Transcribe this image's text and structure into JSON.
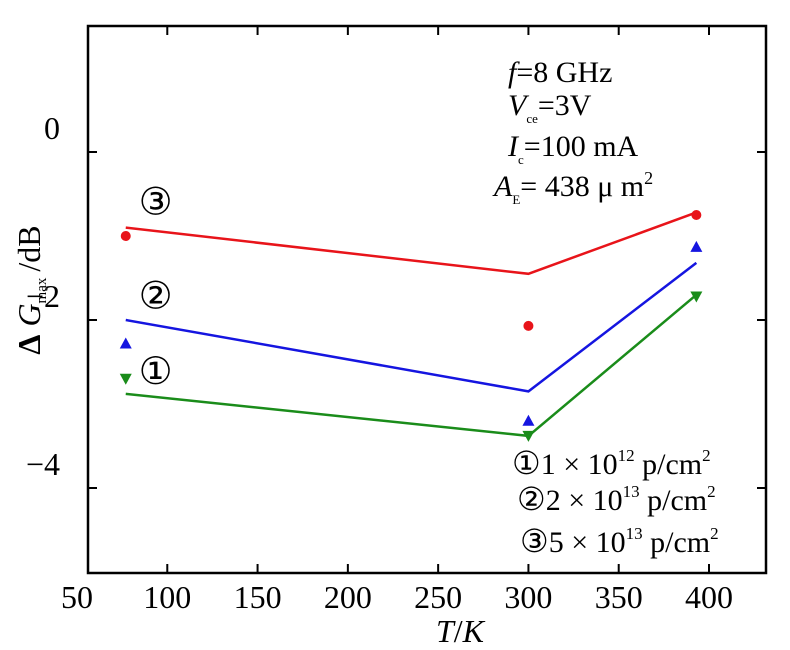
{
  "chart_data": {
    "type": "line",
    "xlabel": {
      "var": "T",
      "unit": "K"
    },
    "ylabel": {
      "delta": "Δ",
      "var": "G",
      "sub": "max",
      "unit": "/dB"
    },
    "xlim": [
      50,
      425
    ],
    "ylim": [
      -5,
      1.5
    ],
    "xticks": [
      50,
      100,
      150,
      200,
      250,
      300,
      350,
      400
    ],
    "yticks": [
      0,
      -2,
      -4
    ],
    "ytick_labels": [
      "0",
      "−2",
      "−4"
    ],
    "grid": false,
    "series": [
      {
        "id": "3",
        "marker_label": "③",
        "color": "#e8141a",
        "marker": "circle",
        "line_x": [
          77,
          300,
          393
        ],
        "line_y": [
          -0.9,
          -1.45,
          -0.72
        ],
        "points_x": [
          77,
          300,
          393
        ],
        "points_y": [
          -1.0,
          -2.07,
          -0.75
        ]
      },
      {
        "id": "2",
        "marker_label": "②",
        "color": "#1515e0",
        "marker": "triangle-up",
        "line_x": [
          77,
          300,
          393
        ],
        "line_y": [
          -2.0,
          -2.85,
          -1.32
        ],
        "points_x": [
          77,
          300,
          393
        ],
        "points_y": [
          -2.28,
          -3.2,
          -1.13
        ]
      },
      {
        "id": "1",
        "marker_label": "①",
        "color": "#1a8c1a",
        "marker": "triangle-down",
        "line_x": [
          77,
          300,
          393
        ],
        "line_y": [
          -2.88,
          -3.38,
          -1.7
        ],
        "points_x": [
          77,
          300,
          393
        ],
        "points_y": [
          -2.7,
          -3.38,
          -1.72
        ]
      }
    ],
    "curve_labels": [
      {
        "text": "③",
        "x": 88,
        "y": -0.6
      },
      {
        "text": "②",
        "x": 88,
        "y": -1.72
      },
      {
        "text": "①",
        "x": 88,
        "y": -2.62
      }
    ],
    "conditions": [
      {
        "var": "f",
        "sub": "",
        "text": "=8 GHz"
      },
      {
        "var": "V",
        "sub": "ce",
        "text": "=3V"
      },
      {
        "var": "I",
        "sub": "c",
        "text": "=100 mA"
      },
      {
        "var": "A",
        "sub": "E",
        "text": "= 438  μ m",
        "sup": "2"
      }
    ],
    "legend": {
      "placement": "bottom-right",
      "entries": [
        {
          "mark": "①",
          "text": "1 × 10",
          "exp": "12",
          "unit": " p/cm",
          "unit_exp": "2"
        },
        {
          "mark": "②",
          "text": "2 × 10",
          "exp": "13",
          "unit": " p/cm",
          "unit_exp": "2"
        },
        {
          "mark": "③",
          "text": "5 × 10",
          "exp": "13",
          "unit": " p/cm",
          "unit_exp": "2"
        }
      ]
    }
  }
}
